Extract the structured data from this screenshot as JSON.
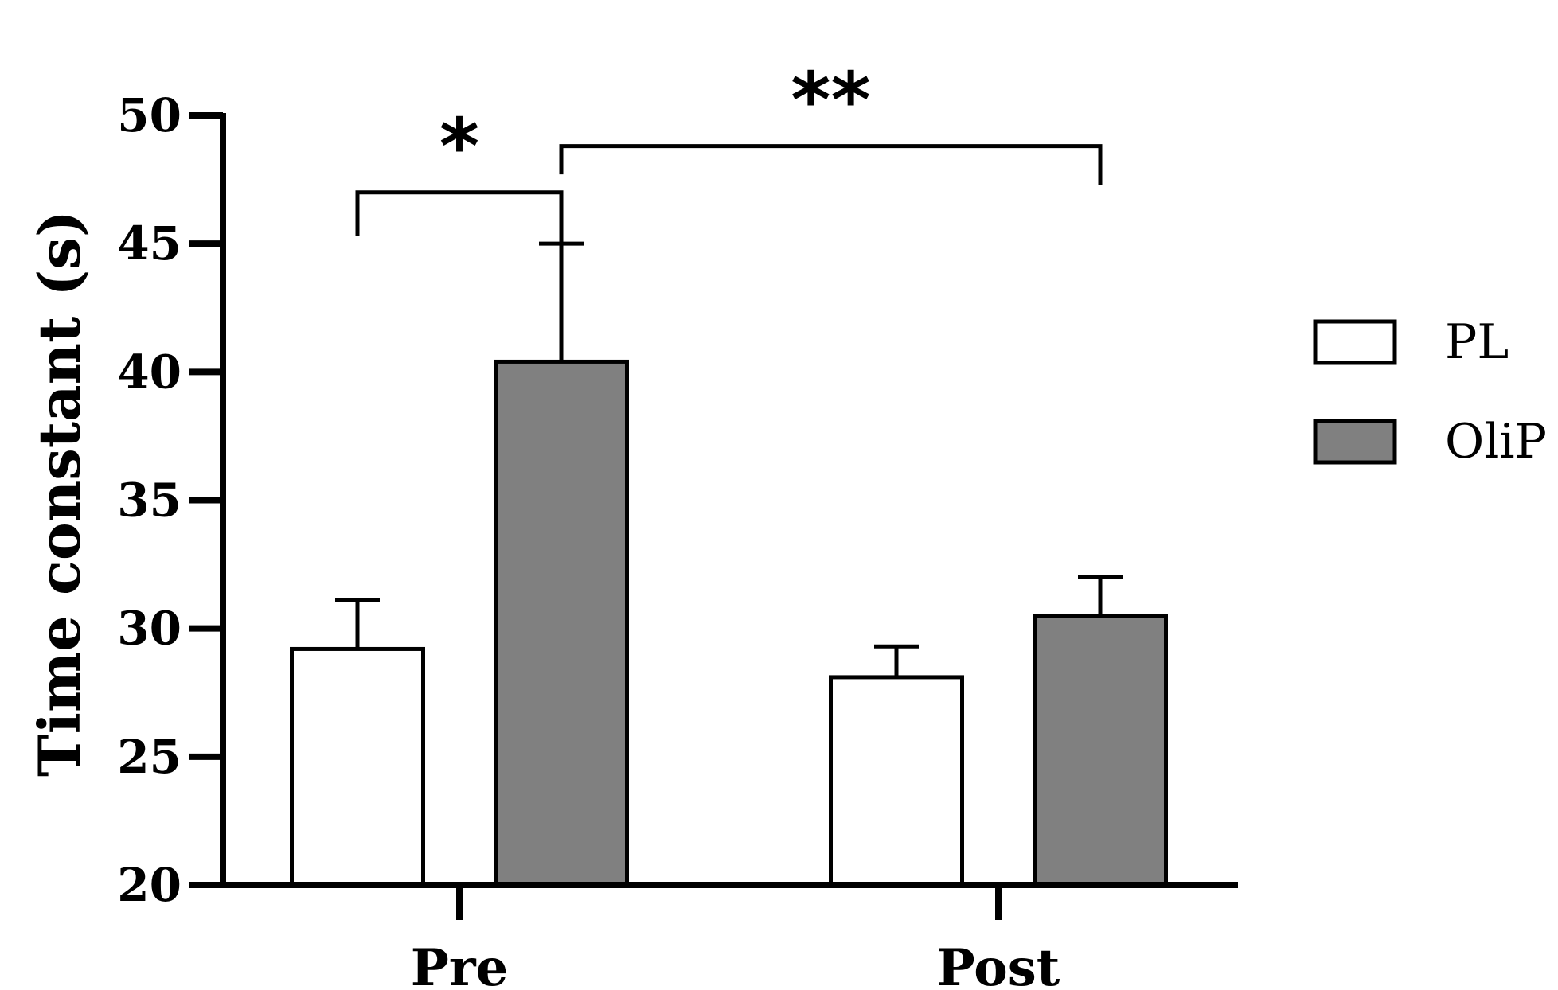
{
  "chart_data": {
    "type": "bar",
    "title": "",
    "xlabel": "",
    "ylabel": "Time constant (s)",
    "ylim": [
      20,
      50
    ],
    "yticks": [
      20,
      25,
      30,
      35,
      40,
      45,
      50
    ],
    "grid": false,
    "legend_position": "right",
    "categories": [
      "Pre",
      "Post"
    ],
    "series": [
      {
        "name": "PL",
        "values": [
          29.2,
          28.1
        ],
        "errors": [
          1.9,
          1.2
        ],
        "color": "#ffffff"
      },
      {
        "name": "OliP",
        "values": [
          40.4,
          30.5
        ],
        "errors": [
          4.6,
          1.5
        ],
        "color": "#808080"
      }
    ],
    "annotations": [
      {
        "label": "*",
        "from": "Pre/PL",
        "to": "Pre/OliP"
      },
      {
        "label": "**",
        "from": "Pre/OliP",
        "to": "Post/OliP"
      }
    ]
  }
}
